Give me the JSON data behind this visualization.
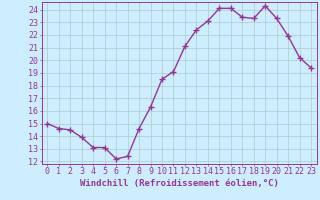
{
  "x": [
    0,
    1,
    2,
    3,
    4,
    5,
    6,
    7,
    8,
    9,
    10,
    11,
    12,
    13,
    14,
    15,
    16,
    17,
    18,
    19,
    20,
    21,
    22,
    23
  ],
  "y": [
    15.0,
    14.6,
    14.5,
    13.9,
    13.1,
    13.1,
    12.2,
    12.4,
    14.6,
    16.3,
    18.5,
    19.1,
    21.1,
    22.4,
    23.1,
    24.1,
    24.1,
    23.4,
    23.3,
    24.3,
    23.3,
    21.9,
    20.2,
    19.4
  ],
  "line_color": "#993399",
  "marker": "+",
  "marker_size": 4,
  "marker_lw": 1.0,
  "bg_color": "#cceeff",
  "grid_color": "#aacccc",
  "xlabel": "Windchill (Refroidissement éolien,°C)",
  "ylabel": "",
  "ylim": [
    11.8,
    24.6
  ],
  "xlim": [
    -0.5,
    23.5
  ],
  "yticks": [
    12,
    13,
    14,
    15,
    16,
    17,
    18,
    19,
    20,
    21,
    22,
    23,
    24
  ],
  "xticks": [
    0,
    1,
    2,
    3,
    4,
    5,
    6,
    7,
    8,
    9,
    10,
    11,
    12,
    13,
    14,
    15,
    16,
    17,
    18,
    19,
    20,
    21,
    22,
    23
  ],
  "tick_color": "#993399",
  "label_color": "#993399",
  "font_size_label": 6.5,
  "font_size_tick": 6.0,
  "line_width": 1.0
}
